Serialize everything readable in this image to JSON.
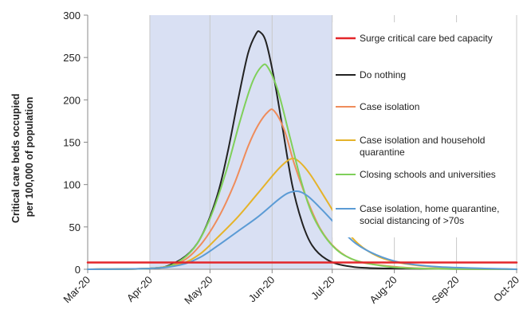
{
  "chart_data": {
    "type": "line",
    "title": "",
    "xlabel": "",
    "ylabel": "Critical care beds occupied per 100,000 of population",
    "ylabel_lines": [
      "Critical care beds occupied",
      "per 100,000 of population"
    ],
    "ylim": [
      0,
      300
    ],
    "yticks": [
      "0",
      "50",
      "100",
      "150",
      "200",
      "250",
      "300"
    ],
    "xlim": [
      "2020-03-01",
      "2020-10-01"
    ],
    "xticks": [
      {
        "label": "Mar-20",
        "date": "2020-03-01"
      },
      {
        "label": "Apr-20",
        "date": "2020-04-01"
      },
      {
        "label": "May-20",
        "date": "2020-05-01"
      },
      {
        "label": "Jun-20",
        "date": "2020-06-01"
      },
      {
        "label": "Jul-20",
        "date": "2020-07-01"
      },
      {
        "label": "Aug-20",
        "date": "2020-08-01"
      },
      {
        "label": "Sep-20",
        "date": "2020-09-01"
      },
      {
        "label": "Oct-20",
        "date": "2020-10-01"
      }
    ],
    "grid": "vertical",
    "shaded_region": {
      "start": "2020-04-01",
      "end": "2020-07-01",
      "color": "#d9e0f3"
    },
    "legend_position": "right",
    "series": [
      {
        "name": "Surge critical care bed capacity",
        "color": "#e3262a",
        "points": [
          [
            "2020-03-01",
            8
          ],
          [
            "2020-10-01",
            8
          ]
        ]
      },
      {
        "name": "Do nothing",
        "color": "#222222",
        "points": [
          [
            "2020-03-01",
            0
          ],
          [
            "2020-04-01",
            1
          ],
          [
            "2020-04-11",
            5
          ],
          [
            "2020-04-21",
            20
          ],
          [
            "2020-04-28",
            45
          ],
          [
            "2020-05-05",
            90
          ],
          [
            "2020-05-10",
            140
          ],
          [
            "2020-05-15",
            200
          ],
          [
            "2020-05-20",
            255
          ],
          [
            "2020-05-24",
            278
          ],
          [
            "2020-05-26",
            280
          ],
          [
            "2020-05-29",
            268
          ],
          [
            "2020-06-02",
            225
          ],
          [
            "2020-06-06",
            170
          ],
          [
            "2020-06-11",
            100
          ],
          [
            "2020-06-16",
            55
          ],
          [
            "2020-06-21",
            28
          ],
          [
            "2020-06-28",
            12
          ],
          [
            "2020-07-08",
            4
          ],
          [
            "2020-07-28",
            1
          ],
          [
            "2020-10-01",
            0
          ]
        ]
      },
      {
        "name": "Case isolation",
        "color": "#ef8c5b",
        "points": [
          [
            "2020-03-01",
            0
          ],
          [
            "2020-04-01",
            1
          ],
          [
            "2020-04-16",
            8
          ],
          [
            "2020-04-26",
            28
          ],
          [
            "2020-05-05",
            60
          ],
          [
            "2020-05-13",
            100
          ],
          [
            "2020-05-20",
            145
          ],
          [
            "2020-05-25",
            170
          ],
          [
            "2020-05-30",
            186
          ],
          [
            "2020-06-02",
            187
          ],
          [
            "2020-06-07",
            165
          ],
          [
            "2020-06-12",
            125
          ],
          [
            "2020-06-18",
            85
          ],
          [
            "2020-06-25",
            48
          ],
          [
            "2020-07-03",
            24
          ],
          [
            "2020-07-13",
            10
          ],
          [
            "2020-07-28",
            4
          ],
          [
            "2020-08-17",
            1
          ],
          [
            "2020-10-01",
            0
          ]
        ]
      },
      {
        "name": "Case isolation and household quarantine",
        "color": "#e5b32a",
        "points": [
          [
            "2020-03-01",
            0
          ],
          [
            "2020-04-01",
            1
          ],
          [
            "2020-04-16",
            6
          ],
          [
            "2020-04-26",
            18
          ],
          [
            "2020-05-05",
            38
          ],
          [
            "2020-05-15",
            62
          ],
          [
            "2020-05-25",
            90
          ],
          [
            "2020-06-04",
            118
          ],
          [
            "2020-06-10",
            130
          ],
          [
            "2020-06-14",
            128
          ],
          [
            "2020-06-20",
            112
          ],
          [
            "2020-06-28",
            82
          ],
          [
            "2020-07-06",
            52
          ],
          [
            "2020-07-14",
            30
          ],
          [
            "2020-07-24",
            15
          ],
          [
            "2020-08-05",
            7
          ],
          [
            "2020-08-20",
            3
          ],
          [
            "2020-09-10",
            1
          ],
          [
            "2020-10-01",
            0
          ]
        ]
      },
      {
        "name": "Closing schools and universities",
        "color": "#7fd05a",
        "points": [
          [
            "2020-03-01",
            0
          ],
          [
            "2020-04-01",
            1
          ],
          [
            "2020-04-13",
            6
          ],
          [
            "2020-04-23",
            25
          ],
          [
            "2020-05-01",
            60
          ],
          [
            "2020-05-09",
            115
          ],
          [
            "2020-05-16",
            175
          ],
          [
            "2020-05-22",
            220
          ],
          [
            "2020-05-27",
            240
          ],
          [
            "2020-05-30",
            238
          ],
          [
            "2020-06-04",
            210
          ],
          [
            "2020-06-10",
            155
          ],
          [
            "2020-06-16",
            100
          ],
          [
            "2020-06-22",
            60
          ],
          [
            "2020-07-01",
            28
          ],
          [
            "2020-07-11",
            12
          ],
          [
            "2020-07-26",
            4
          ],
          [
            "2020-08-14",
            1
          ],
          [
            "2020-10-01",
            0
          ]
        ]
      },
      {
        "name": "Case isolation, home quarantine, social distancing of >70s",
        "color": "#5b9bd5",
        "points": [
          [
            "2020-03-01",
            0
          ],
          [
            "2020-04-01",
            1
          ],
          [
            "2020-04-16",
            5
          ],
          [
            "2020-04-26",
            14
          ],
          [
            "2020-05-05",
            28
          ],
          [
            "2020-05-15",
            45
          ],
          [
            "2020-05-25",
            62
          ],
          [
            "2020-06-04",
            82
          ],
          [
            "2020-06-09",
            90
          ],
          [
            "2020-06-14",
            92
          ],
          [
            "2020-06-19",
            86
          ],
          [
            "2020-06-26",
            70
          ],
          [
            "2020-07-04",
            50
          ],
          [
            "2020-07-13",
            30
          ],
          [
            "2020-07-23",
            17
          ],
          [
            "2020-08-04",
            8
          ],
          [
            "2020-08-22",
            3
          ],
          [
            "2020-09-15",
            1
          ],
          [
            "2020-10-01",
            0
          ]
        ]
      }
    ]
  }
}
